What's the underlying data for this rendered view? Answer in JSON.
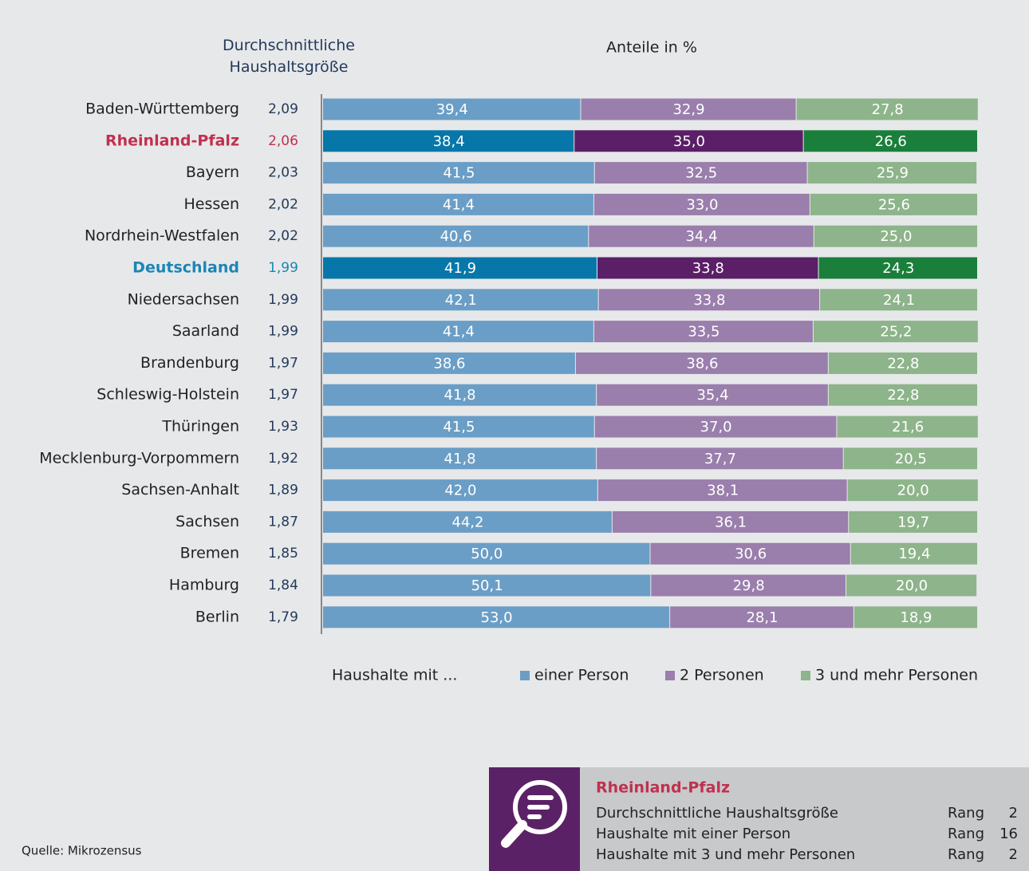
{
  "chart_data": {
    "type": "stacked-bar",
    "title": "Anteile in %",
    "column_title": "Durchschnittliche Haushaltsgröße",
    "categories": [
      "Baden-Württemberg",
      "Rheinland-Pfalz",
      "Bayern",
      "Hessen",
      "Nordrhein-Westfalen",
      "Deutschland",
      "Niedersachsen",
      "Saarland",
      "Brandenburg",
      "Schleswig-Holstein",
      "Thüringen",
      "Mecklenburg-Vorpommern",
      "Sachsen-Anhalt",
      "Sachsen",
      "Bremen",
      "Hamburg",
      "Berlin"
    ],
    "household_size": {
      "values": [
        2.09,
        2.06,
        2.03,
        2.02,
        2.02,
        1.99,
        1.99,
        1.99,
        1.97,
        1.97,
        1.93,
        1.92,
        1.89,
        1.87,
        1.85,
        1.84,
        1.79
      ],
      "value_labels": [
        "2,09",
        "2,06",
        "2,03",
        "2,02",
        "2,02",
        "1,99",
        "1,99",
        "1,99",
        "1,97",
        "1,97",
        "1,93",
        "1,92",
        "1,89",
        "1,87",
        "1,85",
        "1,84",
        "1,79"
      ]
    },
    "series": [
      {
        "name": "einer Person",
        "color": "#6a9ec6",
        "highlight_color": "#0677a8",
        "values": [
          39.4,
          38.4,
          41.5,
          41.4,
          40.6,
          41.9,
          42.1,
          41.4,
          38.6,
          41.8,
          41.5,
          41.8,
          42.0,
          44.2,
          50.0,
          50.1,
          53.0
        ],
        "value_labels": [
          "39,4",
          "38,4",
          "41,5",
          "41,4",
          "40,6",
          "41,9",
          "42,1",
          "41,4",
          "38,6",
          "41,8",
          "41,5",
          "41,8",
          "42,0",
          "44,2",
          "50,0",
          "50,1",
          "53,0"
        ]
      },
      {
        "name": "2 Personen",
        "color": "#9a7eac",
        "highlight_color": "#5a1f67",
        "values": [
          32.9,
          35.0,
          32.5,
          33.0,
          34.4,
          33.8,
          33.8,
          33.5,
          38.6,
          35.4,
          37.0,
          37.7,
          38.1,
          36.1,
          30.6,
          29.8,
          28.1
        ],
        "value_labels": [
          "32,9",
          "35,0",
          "32,5",
          "33,0",
          "34,4",
          "33,8",
          "33,8",
          "33,5",
          "38,6",
          "35,4",
          "37,0",
          "37,7",
          "38,1",
          "36,1",
          "30,6",
          "29,8",
          "28,1"
        ]
      },
      {
        "name": "3 und mehr Personen",
        "color": "#8db48a",
        "highlight_color": "#1a7f3b",
        "values": [
          27.8,
          26.6,
          25.9,
          25.6,
          25.0,
          24.3,
          24.1,
          25.2,
          22.8,
          22.8,
          21.6,
          20.5,
          20.0,
          19.7,
          19.4,
          20.0,
          18.9
        ],
        "value_labels": [
          "27,8",
          "26,6",
          "25,9",
          "25,6",
          "25,0",
          "24,3",
          "24,1",
          "25,2",
          "22,8",
          "22,8",
          "21,6",
          "20,5",
          "20,0",
          "19,7",
          "19,4",
          "20,0",
          "18,9"
        ]
      }
    ],
    "highlighted": {
      "Rheinland-Pfalz": "#c0304f",
      "Deutschland": "#1a86b4"
    },
    "xlim": [
      0,
      100
    ],
    "legend_title": "Haushalte mit ...",
    "source": "Quelle: Mikrozensus"
  },
  "info_box": {
    "title": "Rheinland-Pfalz",
    "rows": [
      {
        "label": "Durchschnittliche Haushaltsgröße",
        "rank_label": "Rang",
        "rank": 2
      },
      {
        "label": "Haushalte mit einer Person",
        "rank_label": "Rang",
        "rank": 16
      },
      {
        "label": "Haushalte mit 3 und mehr Personen",
        "rank_label": "Rang",
        "rank": 2
      }
    ]
  }
}
